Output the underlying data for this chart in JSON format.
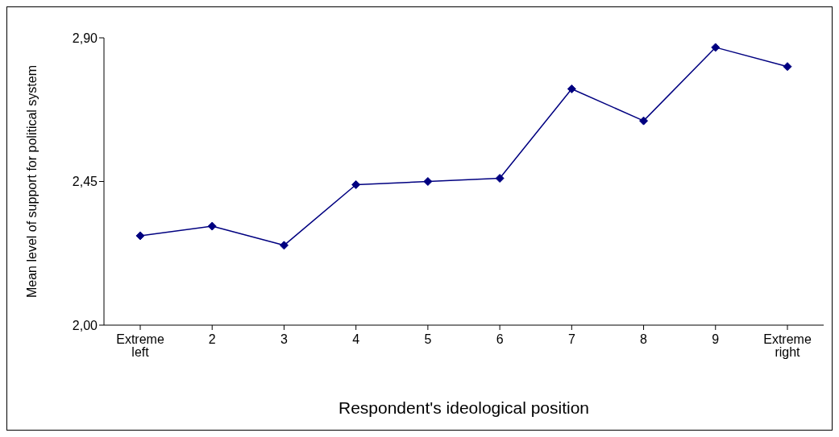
{
  "chart_data": {
    "type": "line",
    "xlabel": "Respondent's ideological position",
    "ylabel": "Mean level of support for political system",
    "categories": [
      "Extreme left",
      "2",
      "3",
      "4",
      "5",
      "6",
      "7",
      "8",
      "9",
      "Extreme right"
    ],
    "series": [
      {
        "color": "#000080",
        "values": [
          2.28,
          2.31,
          2.25,
          2.44,
          2.45,
          2.46,
          2.74,
          2.64,
          2.87,
          2.81
        ]
      }
    ],
    "ylim": [
      2.0,
      2.9
    ],
    "yticks": [
      {
        "value": 2.0,
        "label": "2,00"
      },
      {
        "value": 2.45,
        "label": "2,45"
      },
      {
        "value": 2.9,
        "label": "2,90"
      }
    ],
    "grid": false,
    "legend": false,
    "marker": "diamond",
    "line_style": "solid"
  }
}
